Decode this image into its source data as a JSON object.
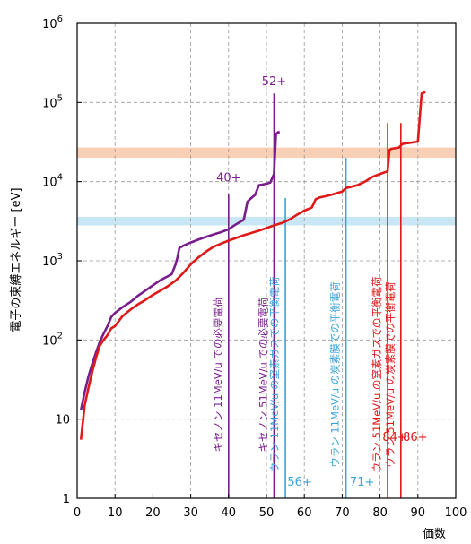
{
  "chart_data": {
    "type": "line",
    "ylabel": "電子の束縛エネルギー [eV]",
    "xlabel": "価数",
    "xlim": [
      0,
      100
    ],
    "ylim": [
      1,
      1000000
    ],
    "y_scale": "log",
    "grid": true,
    "x_ticks": [
      0,
      10,
      20,
      30,
      40,
      50,
      60,
      70,
      80,
      90,
      100
    ],
    "y_ticks": [
      {
        "value": 1,
        "label": "1"
      },
      {
        "value": 10,
        "label": "10"
      },
      {
        "value": 100,
        "label": "10",
        "sup": "2"
      },
      {
        "value": 1000,
        "label": "10",
        "sup": "3"
      },
      {
        "value": 10000,
        "label": "10",
        "sup": "4"
      },
      {
        "value": 100000,
        "label": "10",
        "sup": "5"
      },
      {
        "value": 1000000,
        "label": "10",
        "sup": "6"
      }
    ],
    "bands": [
      {
        "ymin": 20000,
        "ymax": 27000,
        "color": "#f8c8a8"
      },
      {
        "ymin": 2800,
        "ymax": 3600,
        "color": "#bfe2f2"
      }
    ],
    "series": [
      {
        "color": "#7a1d8c",
        "points": [
          [
            1,
            13
          ],
          [
            2,
            22
          ],
          [
            3,
            35
          ],
          [
            4,
            50
          ],
          [
            5,
            70
          ],
          [
            6,
            95
          ],
          [
            7,
            120
          ],
          [
            8,
            150
          ],
          [
            9,
            195
          ],
          [
            10,
            220
          ],
          [
            12,
            260
          ],
          [
            14,
            300
          ],
          [
            16,
            360
          ],
          [
            18,
            420
          ],
          [
            20,
            490
          ],
          [
            22,
            570
          ],
          [
            24,
            640
          ],
          [
            25,
            680
          ],
          [
            26,
            900
          ],
          [
            26.5,
            1100
          ],
          [
            27,
            1450
          ],
          [
            28,
            1550
          ],
          [
            30,
            1700
          ],
          [
            32,
            1850
          ],
          [
            34,
            2000
          ],
          [
            36,
            2150
          ],
          [
            38,
            2300
          ],
          [
            40,
            2500
          ],
          [
            41,
            2700
          ],
          [
            42,
            2900
          ],
          [
            43,
            3100
          ],
          [
            44,
            3300
          ],
          [
            45,
            5600
          ],
          [
            46,
            6200
          ],
          [
            47,
            6800
          ],
          [
            48,
            9000
          ],
          [
            49,
            9200
          ],
          [
            50,
            9400
          ],
          [
            51,
            9700
          ],
          [
            52,
            12500
          ],
          [
            52.5,
            40000
          ],
          [
            53,
            42000
          ],
          [
            53.5,
            42000
          ]
        ]
      },
      {
        "color": "#e01818",
        "points": [
          [
            1,
            5.5
          ],
          [
            2,
            15
          ],
          [
            3,
            25
          ],
          [
            4,
            40
          ],
          [
            5,
            60
          ],
          [
            6,
            85
          ],
          [
            7,
            100
          ],
          [
            8,
            115
          ],
          [
            9,
            140
          ],
          [
            10,
            150
          ],
          [
            12,
            200
          ],
          [
            14,
            240
          ],
          [
            16,
            280
          ],
          [
            18,
            320
          ],
          [
            20,
            370
          ],
          [
            22,
            420
          ],
          [
            24,
            480
          ],
          [
            26,
            560
          ],
          [
            28,
            700
          ],
          [
            30,
            900
          ],
          [
            32,
            1100
          ],
          [
            34,
            1300
          ],
          [
            36,
            1500
          ],
          [
            38,
            1650
          ],
          [
            40,
            1800
          ],
          [
            44,
            2100
          ],
          [
            48,
            2400
          ],
          [
            52,
            2800
          ],
          [
            54,
            3000
          ],
          [
            56,
            3300
          ],
          [
            58,
            3800
          ],
          [
            60,
            4300
          ],
          [
            62,
            4700
          ],
          [
            63,
            6000
          ],
          [
            64,
            6300
          ],
          [
            66,
            6600
          ],
          [
            68,
            7000
          ],
          [
            70,
            7500
          ],
          [
            71,
            8300
          ],
          [
            74,
            9000
          ],
          [
            76,
            10000
          ],
          [
            78,
            11500
          ],
          [
            80,
            12500
          ],
          [
            81,
            13000
          ],
          [
            82,
            13500
          ],
          [
            82.5,
            25000
          ],
          [
            83,
            26000
          ],
          [
            85,
            27000
          ],
          [
            86,
            30000
          ],
          [
            88,
            31000
          ],
          [
            90,
            32000
          ],
          [
            91,
            130000
          ],
          [
            92,
            135000
          ]
        ]
      }
    ],
    "vlines": [
      {
        "x": 40,
        "color": "#7a1d8c",
        "text": "キセノン 11MeV/u での必要電荷",
        "charge": "40+"
      },
      {
        "x": 52,
        "color": "#7a1d8c",
        "text": "キセノン 51MeV/u での必要電荷",
        "charge": "52+"
      },
      {
        "x": 55,
        "color": "#3aa3d8",
        "text": "ウラン 11MeV/u の窒素ガスでの平衡電荷",
        "charge": "56+"
      },
      {
        "x": 71,
        "color": "#3aa3d8",
        "text": "ウラン 11MeV/u の炭素膜での平衡電荷",
        "charge": "71+"
      },
      {
        "x": 82,
        "color": "#e01818",
        "text": "ウラン 51MeV/u の窒素ガスでの平衡電荷",
        "charge": "84+"
      },
      {
        "x": 85.5,
        "color": "#e01818",
        "text": "ウラン 51MeV/u の炭素膜での平衡電荷",
        "charge": "86+"
      }
    ]
  }
}
